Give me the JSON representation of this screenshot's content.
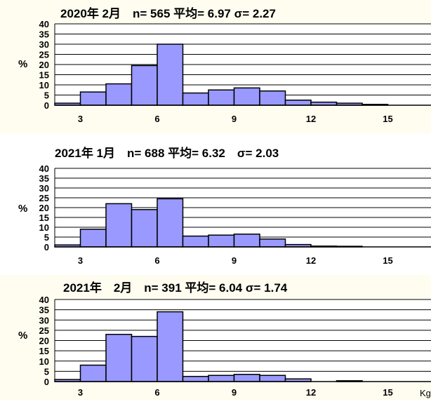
{
  "chart_data": [
    {
      "type": "bar",
      "title": "2020年 2月　n= 565 平均= 6.97 σ= 2.27",
      "ylabel": "%",
      "ylim": [
        0,
        40
      ],
      "yticks": [
        "0",
        "5",
        "10",
        "15",
        "20",
        "25",
        "30",
        "35",
        "40"
      ],
      "xticks": [
        "3",
        "6",
        "9",
        "12",
        "15"
      ],
      "xunit": "",
      "x": [
        2.5,
        3.5,
        4.5,
        5.5,
        6.5,
        7.5,
        8.5,
        9.5,
        10.5,
        11.5,
        12.5,
        13.5,
        14.5,
        15.5,
        16.5
      ],
      "values": [
        1,
        6.5,
        10.5,
        19.5,
        30,
        6,
        7.5,
        8.5,
        7,
        2.5,
        1.5,
        1,
        0.4,
        0,
        0
      ],
      "grid": true,
      "bar_color": "#9999ff"
    },
    {
      "type": "bar",
      "title": "2021年 1月　n= 688 平均= 6.32　σ= 2.03",
      "ylabel": "%",
      "ylim": [
        0,
        40
      ],
      "yticks": [
        "0",
        "5",
        "10",
        "15",
        "20",
        "25",
        "30",
        "35",
        "40"
      ],
      "xticks": [
        "3",
        "6",
        "9",
        "12",
        "15"
      ],
      "xunit": "",
      "x": [
        2.5,
        3.5,
        4.5,
        5.5,
        6.5,
        7.5,
        8.5,
        9.5,
        10.5,
        11.5,
        12.5,
        13.5,
        14.5,
        15.5,
        16.5
      ],
      "values": [
        1,
        9,
        22,
        19,
        24.5,
        5.5,
        6,
        6.5,
        4,
        1.2,
        0.4,
        0.3,
        0,
        0,
        0
      ],
      "grid": true,
      "bar_color": "#9999ff"
    },
    {
      "type": "bar",
      "title": "2021年　2月　n= 391 平均= 6.04 σ= 1.74",
      "ylabel": "%",
      "ylim": [
        0,
        40
      ],
      "yticks": [
        "0",
        "5",
        "10",
        "15",
        "20",
        "25",
        "30",
        "35",
        "40"
      ],
      "xticks": [
        "3",
        "6",
        "9",
        "12",
        "15"
      ],
      "xunit": "Kg",
      "x": [
        2.5,
        3.5,
        4.5,
        5.5,
        6.5,
        7.5,
        8.5,
        9.5,
        10.5,
        11.5,
        12.5,
        13.5,
        14.5,
        15.5,
        16.5
      ],
      "values": [
        1,
        8,
        23,
        22,
        34,
        2.5,
        3,
        3.5,
        3,
        1.3,
        0,
        0.4,
        0,
        0,
        0
      ],
      "grid": true,
      "bar_color": "#9999ff"
    }
  ]
}
